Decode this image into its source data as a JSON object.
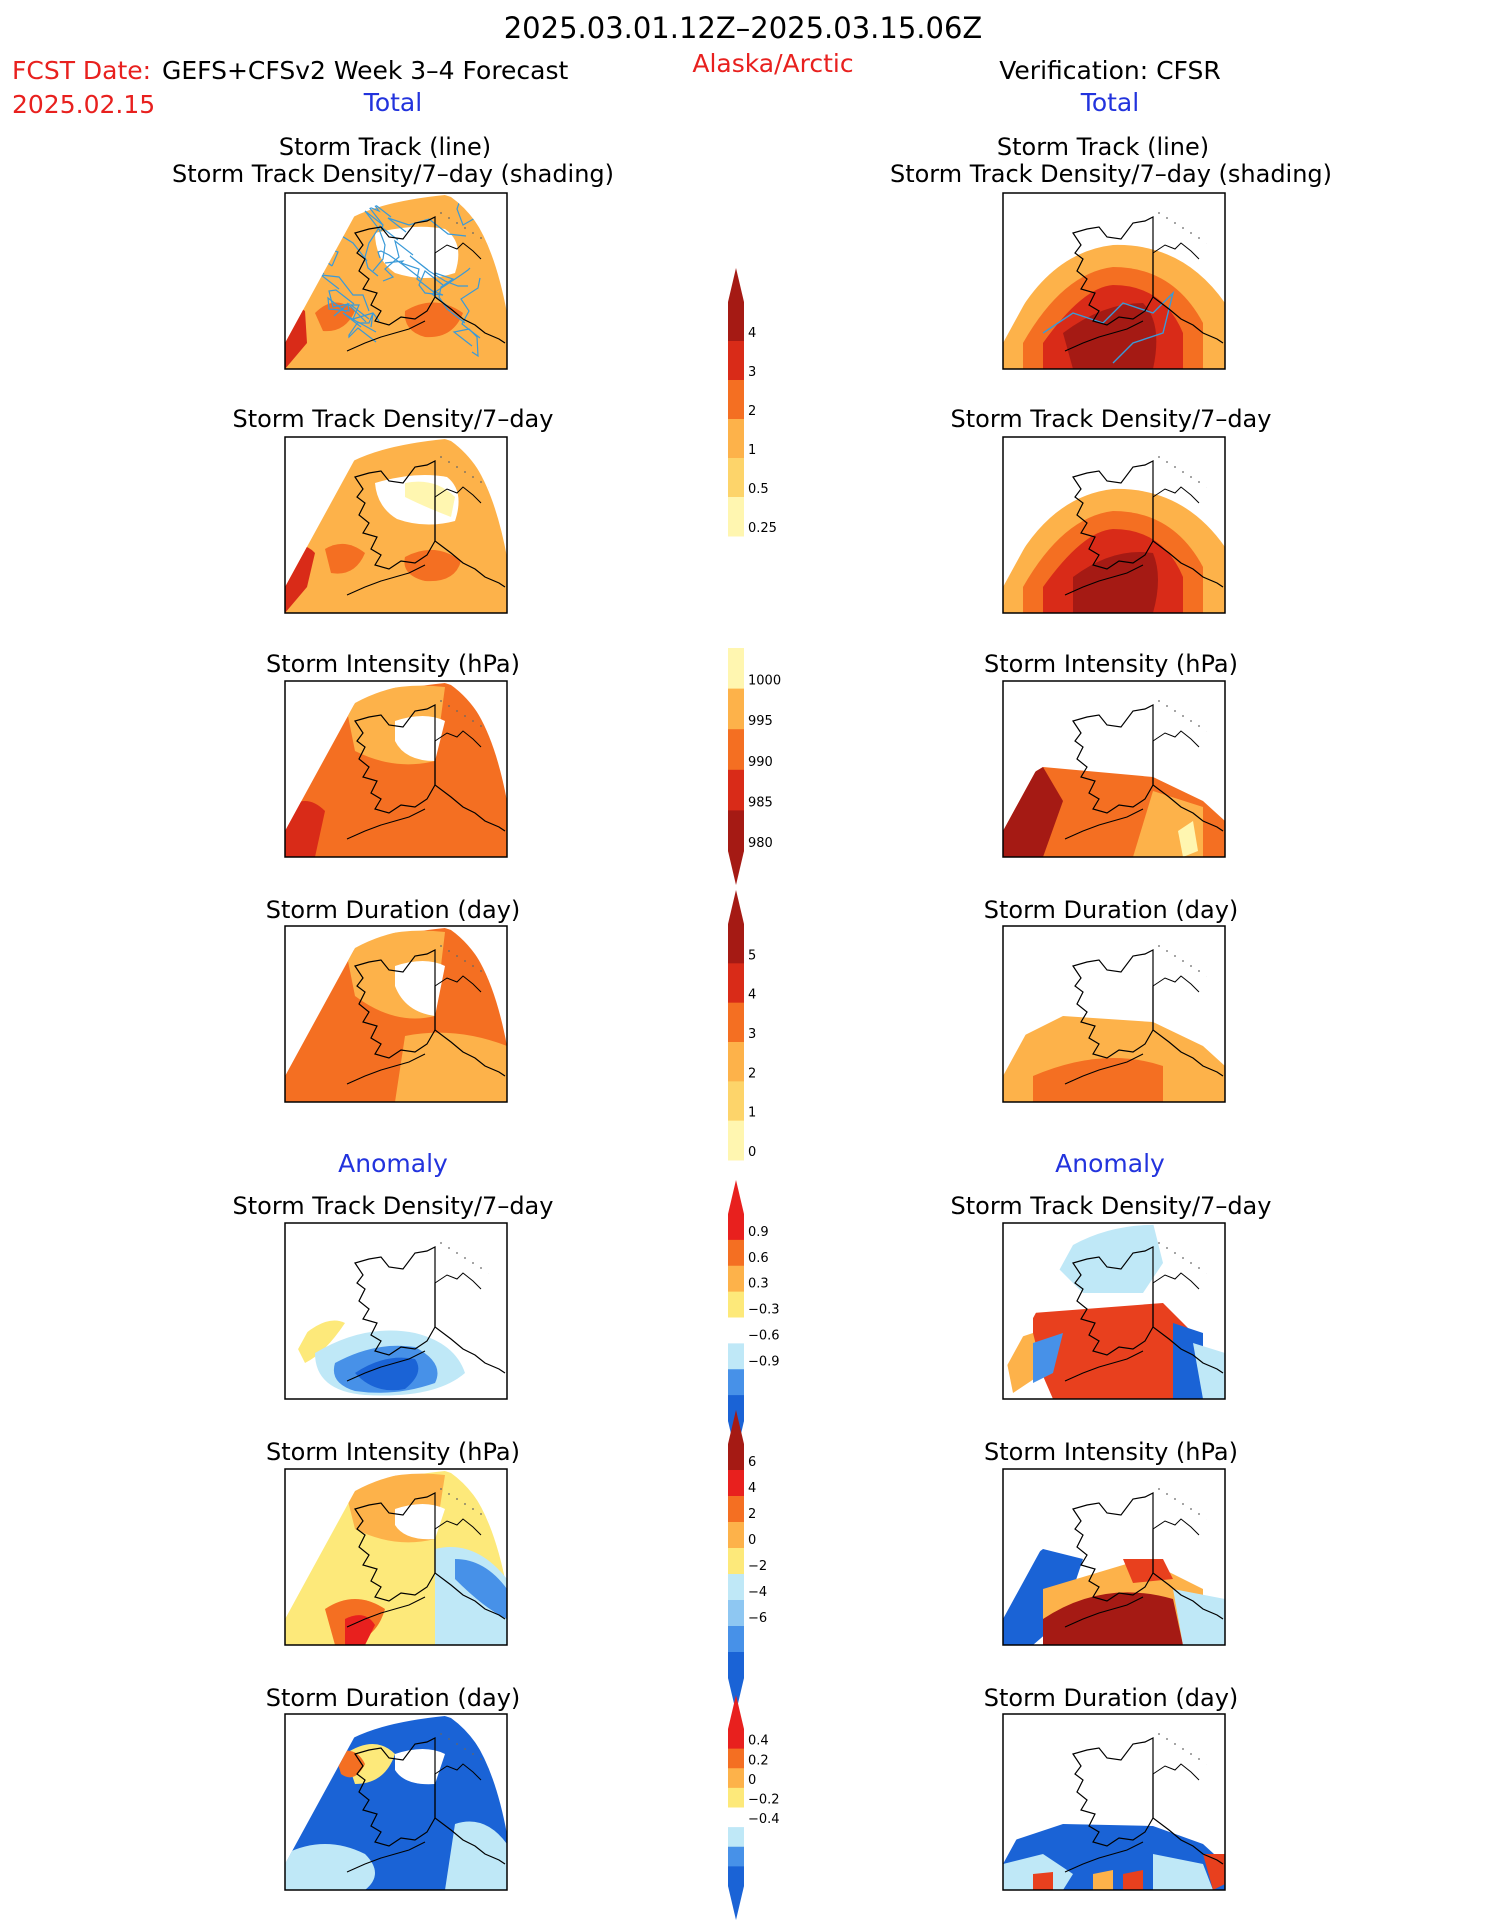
{
  "header": {
    "date_range": "2025.03.01.12Z–2025.03.15.06Z",
    "fcst_prefix": "FCST Date:",
    "fcst_date": "2025.02.15",
    "forecast_label": "GEFS+CFSv2 Week 3–4 Forecast",
    "region": "Alaska/Arctic",
    "verification": "Verification: CFSR"
  },
  "columns": {
    "left_total": "Total",
    "right_total": "Total",
    "left_anomaly": "Anomaly",
    "right_anomaly": "Anomaly"
  },
  "panels": {
    "track_line": "Storm Track (line)",
    "track_density_shading": "Storm Track Density/7–day (shading)",
    "track_density": "Storm Track Density/7–day",
    "intensity": "Storm Intensity (hPa)",
    "duration": "Storm Duration (day)"
  },
  "colorbars": {
    "density_total": [
      "4",
      "3",
      "2",
      "1",
      "0.5",
      "0.25"
    ],
    "intensity_total": [
      "1000",
      "995",
      "990",
      "985",
      "980"
    ],
    "duration_total": [
      "5",
      "4",
      "3",
      "2",
      "1",
      "0"
    ],
    "density_anomaly": [
      "0.9",
      "0.6",
      "0.3",
      "−0.3",
      "−0.6",
      "−0.9"
    ],
    "intensity_anomaly": [
      "6",
      "4",
      "2",
      "0",
      "−2",
      "−4",
      "−6"
    ],
    "duration_anomaly": [
      "0.4",
      "0.2",
      "0",
      "−0.2",
      "−0.4"
    ]
  },
  "colors": {
    "title": "#000000",
    "fcst": "#e8201e",
    "total_label": "#2233dd",
    "region": "#e8201e",
    "storm_track_line": "#3a9ad8"
  }
}
